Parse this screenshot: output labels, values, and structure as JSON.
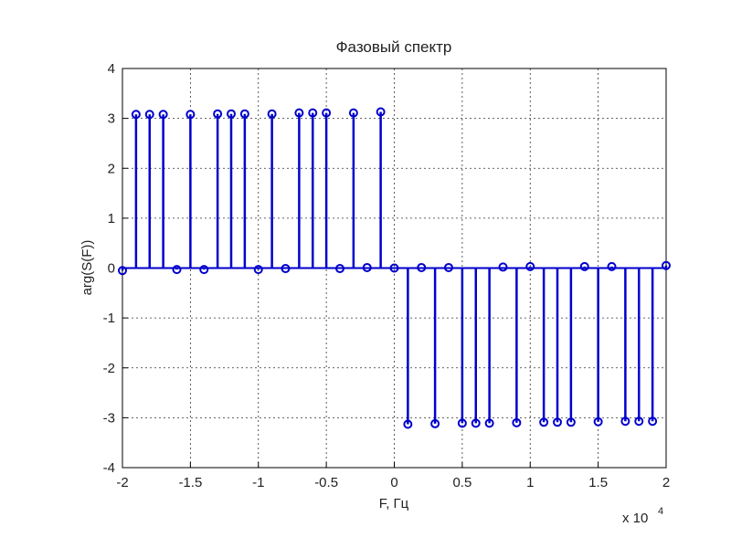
{
  "chart_data": {
    "type": "stem",
    "title": "Фазовый спектр",
    "x_label": "F, Гц",
    "y_label": "arg(S(F))",
    "x_multiplier": {
      "base": "x 10",
      "exponent": "4"
    },
    "x": [
      -2,
      -1.9,
      -1.8,
      -1.7,
      -1.6,
      -1.5,
      -1.4,
      -1.3,
      -1.2,
      -1.1,
      -1,
      -0.9,
      -0.8,
      -0.7,
      -0.6,
      -0.5,
      -0.4,
      -0.3,
      -0.2,
      -0.1,
      0,
      0.1,
      0.2,
      0.3,
      0.4,
      0.5,
      0.6,
      0.7,
      0.8,
      0.9,
      1,
      1.1,
      1.2,
      1.3,
      1.4,
      1.5,
      1.6,
      1.7,
      1.8,
      1.9,
      2
    ],
    "values": [
      -0.05,
      3.08,
      3.08,
      3.08,
      -0.03,
      3.08,
      -0.03,
      3.09,
      3.09,
      3.09,
      -0.03,
      3.09,
      -0.01,
      3.11,
      3.11,
      3.11,
      -0.01,
      3.11,
      0.01,
      3.13,
      0,
      -3.13,
      0.01,
      -3.12,
      0.01,
      -3.11,
      -3.11,
      -3.11,
      0.02,
      -3.1,
      0.03,
      -3.09,
      -3.09,
      -3.09,
      0.03,
      -3.08,
      0.03,
      -3.07,
      -3.07,
      -3.07,
      0.05
    ],
    "color": "#0000cc",
    "xlim": [
      -2,
      2
    ],
    "xticks": [
      -2,
      -1.5,
      -1,
      -0.5,
      0,
      0.5,
      1,
      1.5,
      2
    ],
    "ylim": [
      -4,
      4
    ],
    "yticks": [
      -4,
      -3,
      -2,
      -1,
      0,
      1,
      2,
      3,
      4
    ],
    "grid": true
  }
}
